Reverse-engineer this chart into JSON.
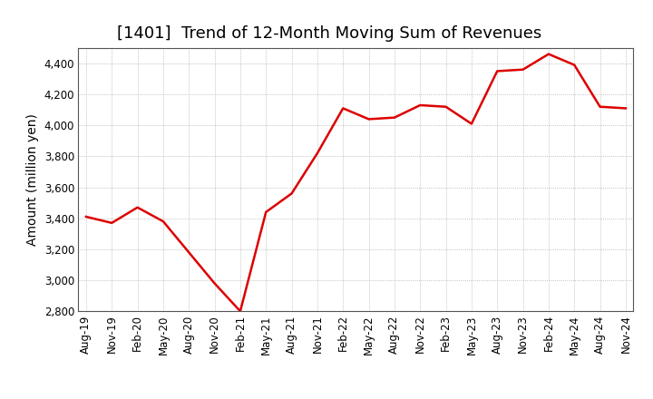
{
  "title": "[1401]  Trend of 12-Month Moving Sum of Revenues",
  "ylabel": "Amount (million yen)",
  "line_color": "#dd0000",
  "line_width": 1.8,
  "background_color": "#ffffff",
  "grid_color": "#999999",
  "ylim": [
    2800,
    4500
  ],
  "yticks": [
    2800,
    3000,
    3200,
    3400,
    3600,
    3800,
    4000,
    4200,
    4400
  ],
  "values": [
    3410,
    3370,
    3470,
    3380,
    3180,
    2980,
    2800,
    3440,
    3560,
    3820,
    4110,
    4040,
    4050,
    4130,
    4120,
    4010,
    4350,
    4360,
    4460,
    4390,
    4120,
    4110
  ],
  "xtick_labels": [
    "Aug-19",
    "Nov-19",
    "Feb-20",
    "May-20",
    "Aug-20",
    "Nov-20",
    "Feb-21",
    "May-21",
    "Aug-21",
    "Nov-21",
    "Feb-22",
    "May-22",
    "Aug-22",
    "Nov-22",
    "Feb-23",
    "May-23",
    "Aug-23",
    "Nov-23",
    "Feb-24",
    "May-24",
    "Aug-24",
    "Nov-24"
  ],
  "title_fontsize": 13,
  "ylabel_fontsize": 10,
  "tick_fontsize": 8.5
}
